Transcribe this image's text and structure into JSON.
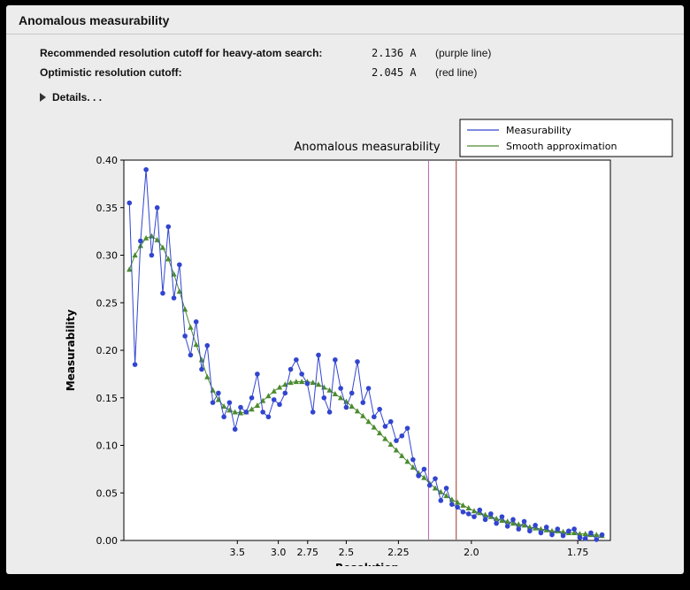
{
  "window": {
    "title": "Anomalous measurability"
  },
  "info": {
    "rows": [
      {
        "label": "Recommended resolution cutoff for heavy-atom search:",
        "value": "2.136 A",
        "note": "(purple line)"
      },
      {
        "label": "Optimistic resolution cutoff:",
        "value": "2.045 A",
        "note": "(red line)"
      }
    ],
    "details_label": "Details. . ."
  },
  "chart_data": {
    "type": "line",
    "title": "Anomalous measurability",
    "xlabel": "Resolution",
    "ylabel": "Measurability",
    "x_axis": {
      "note": "x position linear in 1/d^2; labels are resolution d in Angstrom",
      "min_s2": 0.0,
      "max_s2": 0.35,
      "tick_resolutions": [
        3.5,
        3.0,
        2.75,
        2.5,
        2.25,
        2.0,
        1.75
      ],
      "tick_labels": [
        "3.5",
        "3.0",
        "2.75",
        "2.5",
        "2.25",
        "2.0",
        "1.75"
      ]
    },
    "y_axis": {
      "min": 0.0,
      "max": 0.4,
      "ticks": [
        0.0,
        0.05,
        0.1,
        0.15,
        0.2,
        0.25,
        0.3,
        0.35,
        0.4
      ],
      "tick_labels": [
        "0.00",
        "0.05",
        "0.10",
        "0.15",
        "0.20",
        "0.25",
        "0.30",
        "0.35",
        "0.40"
      ]
    },
    "x_s2": [
      0.004,
      0.008,
      0.012,
      0.016,
      0.02,
      0.024,
      0.028,
      0.032,
      0.036,
      0.04,
      0.044,
      0.048,
      0.052,
      0.056,
      0.06,
      0.064,
      0.068,
      0.072,
      0.076,
      0.08,
      0.084,
      0.088,
      0.092,
      0.096,
      0.1,
      0.104,
      0.108,
      0.112,
      0.116,
      0.12,
      0.124,
      0.128,
      0.132,
      0.136,
      0.14,
      0.144,
      0.148,
      0.152,
      0.156,
      0.16,
      0.164,
      0.168,
      0.172,
      0.176,
      0.18,
      0.184,
      0.188,
      0.192,
      0.196,
      0.2,
      0.204,
      0.208,
      0.212,
      0.216,
      0.22,
      0.224,
      0.228,
      0.232,
      0.236,
      0.24,
      0.244,
      0.248,
      0.252,
      0.256,
      0.26,
      0.264,
      0.268,
      0.272,
      0.276,
      0.28,
      0.284,
      0.288,
      0.292,
      0.296,
      0.3,
      0.304,
      0.308,
      0.312,
      0.316,
      0.32,
      0.324,
      0.328,
      0.332,
      0.336,
      0.34,
      0.344
    ],
    "series": [
      {
        "name": "Measurability",
        "color": "#3145cf",
        "marker": "circle",
        "values": [
          0.355,
          0.185,
          0.315,
          0.39,
          0.3,
          0.35,
          0.26,
          0.33,
          0.255,
          0.29,
          0.215,
          0.195,
          0.23,
          0.18,
          0.205,
          0.145,
          0.155,
          0.13,
          0.145,
          0.117,
          0.14,
          0.135,
          0.15,
          0.175,
          0.135,
          0.13,
          0.148,
          0.143,
          0.155,
          0.18,
          0.19,
          0.175,
          0.165,
          0.135,
          0.195,
          0.15,
          0.135,
          0.19,
          0.16,
          0.14,
          0.155,
          0.188,
          0.145,
          0.16,
          0.13,
          0.138,
          0.12,
          0.125,
          0.105,
          0.11,
          0.118,
          0.085,
          0.068,
          0.075,
          0.058,
          0.065,
          0.042,
          0.055,
          0.038,
          0.035,
          0.03,
          0.028,
          0.025,
          0.032,
          0.022,
          0.028,
          0.018,
          0.025,
          0.015,
          0.022,
          0.012,
          0.02,
          0.01,
          0.016,
          0.008,
          0.014,
          0.006,
          0.012,
          0.005,
          0.01,
          0.012,
          0.003,
          0.002,
          0.008,
          0.001,
          0.006
        ]
      },
      {
        "name": "Smooth approximation",
        "color": "#4c8b2f",
        "marker": "triangle",
        "values": [
          0.285,
          0.3,
          0.31,
          0.318,
          0.32,
          0.316,
          0.308,
          0.296,
          0.28,
          0.262,
          0.243,
          0.224,
          0.206,
          0.19,
          0.172,
          0.158,
          0.148,
          0.141,
          0.137,
          0.135,
          0.134,
          0.135,
          0.138,
          0.142,
          0.147,
          0.152,
          0.157,
          0.161,
          0.164,
          0.166,
          0.167,
          0.167,
          0.167,
          0.166,
          0.164,
          0.161,
          0.158,
          0.154,
          0.15,
          0.146,
          0.141,
          0.136,
          0.131,
          0.125,
          0.119,
          0.113,
          0.107,
          0.101,
          0.095,
          0.089,
          0.083,
          0.077,
          0.071,
          0.066,
          0.06,
          0.055,
          0.051,
          0.047,
          0.043,
          0.04,
          0.037,
          0.034,
          0.031,
          0.029,
          0.027,
          0.025,
          0.023,
          0.021,
          0.02,
          0.018,
          0.017,
          0.016,
          0.014,
          0.013,
          0.012,
          0.011,
          0.01,
          0.01,
          0.009,
          0.008,
          0.008,
          0.007,
          0.007,
          0.006,
          0.006,
          0.005
        ]
      }
    ],
    "vlines": [
      {
        "name": "purple line",
        "resolution": 2.136,
        "color": "#b75fb7"
      },
      {
        "name": "red line",
        "resolution": 2.045,
        "color": "#a03524"
      }
    ],
    "legend": {
      "position": "top-right",
      "entries": [
        "Measurability",
        "Smooth approximation"
      ]
    }
  }
}
